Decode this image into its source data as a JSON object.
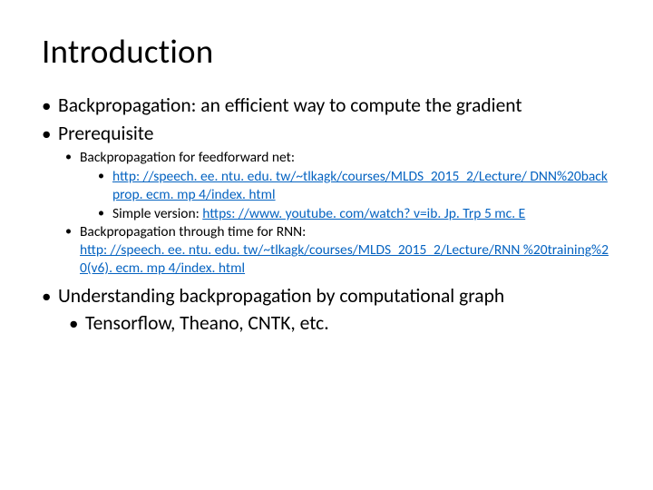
{
  "title": "Introduction",
  "bullets": {
    "l1a": "Backpropagation: an efficient way to compute the gradient",
    "l1b": "Prerequisite",
    "l2a": "Backpropagation for feedforward net:",
    "link1": "http: //speech. ee. ntu. edu. tw/~tlkagk/courses/MLDS_2015_2/Lecture/ DNN%20backprop. ecm. mp 4/index. html",
    "l3b_pre": "Simple version: ",
    "link2": "https: //www. youtube. com/watch? v=ib. Jp. Trp 5 mc. E",
    "l2b": "Backpropagation through time for RNN:",
    "link3": "http: //speech. ee. ntu. edu. tw/~tlkagk/courses/MLDS_2015_2/Lecture/RNN %20training%20(v6). ecm. mp 4/index. html",
    "l1c": "Understanding backpropagation by computational graph",
    "l1d": "Tensorflow, Theano, CNTK, etc."
  },
  "colors": {
    "link": "#0563c1",
    "text": "#000000",
    "bg": "#ffffff"
  }
}
